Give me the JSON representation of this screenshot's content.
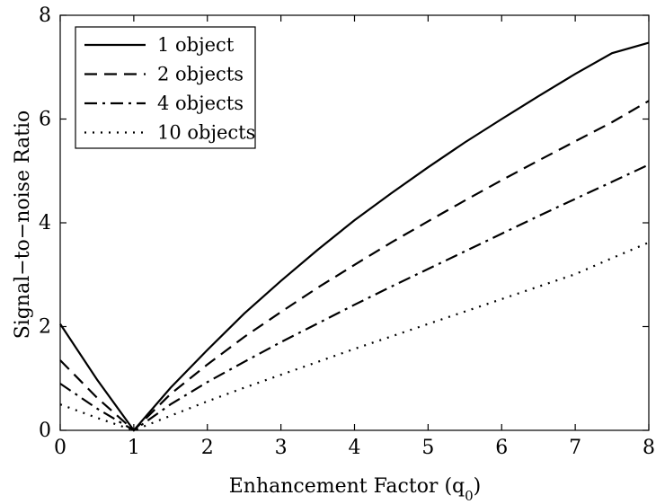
{
  "chart_data": {
    "type": "line",
    "title": "",
    "xlabel": "Enhancement Factor (q",
    "xlabel_sub": "0",
    "xlabel_close": ")",
    "ylabel": "Signal−to−noise Ratio",
    "xlim": [
      0,
      8
    ],
    "ylim": [
      0,
      8
    ],
    "xticks": [
      "0",
      "1",
      "2",
      "3",
      "4",
      "5",
      "6",
      "7",
      "8"
    ],
    "yticks": [
      "0",
      "2",
      "4",
      "6",
      "8"
    ],
    "grid": false,
    "legend_position": "top-left",
    "series": [
      {
        "name": "1 object",
        "style": "solid",
        "x": [
          0,
          0.5,
          1,
          1.5,
          2,
          2.5,
          3,
          3.5,
          4,
          4.5,
          5,
          5.5,
          6,
          6.5,
          7,
          7.5,
          8
        ],
        "y": [
          2.05,
          0.98,
          0.0,
          0.82,
          1.55,
          2.25,
          2.88,
          3.48,
          4.05,
          4.57,
          5.07,
          5.55,
          6.0,
          6.44,
          6.87,
          7.27,
          7.47
        ]
      },
      {
        "name": "2 objects",
        "style": "dashed",
        "x": [
          0,
          0.5,
          1,
          1.5,
          2,
          2.5,
          3,
          3.5,
          4,
          4.5,
          5,
          5.5,
          6,
          6.5,
          7,
          7.5,
          8
        ],
        "y": [
          1.35,
          0.63,
          0.0,
          0.7,
          1.27,
          1.8,
          2.28,
          2.75,
          3.19,
          3.62,
          4.03,
          4.43,
          4.82,
          5.2,
          5.57,
          5.94,
          6.35
        ]
      },
      {
        "name": "4 objects",
        "style": "dashdot",
        "x": [
          0,
          0.5,
          1,
          1.5,
          2,
          2.5,
          3,
          3.5,
          4,
          4.5,
          5,
          5.5,
          6,
          6.5,
          7,
          7.5,
          8
        ],
        "y": [
          0.9,
          0.42,
          0.0,
          0.5,
          0.93,
          1.32,
          1.7,
          2.06,
          2.42,
          2.77,
          3.11,
          3.45,
          3.79,
          4.13,
          4.46,
          4.79,
          5.12
        ]
      },
      {
        "name": "10 objects",
        "style": "dotted",
        "x": [
          0,
          0.5,
          1,
          1.5,
          2,
          2.5,
          3,
          3.5,
          4,
          4.5,
          5,
          5.5,
          6,
          6.5,
          7,
          7.5,
          8
        ],
        "y": [
          0.5,
          0.24,
          0.0,
          0.28,
          0.56,
          0.82,
          1.07,
          1.32,
          1.57,
          1.81,
          2.05,
          2.29,
          2.53,
          2.77,
          3.01,
          3.32,
          3.62
        ]
      }
    ]
  }
}
